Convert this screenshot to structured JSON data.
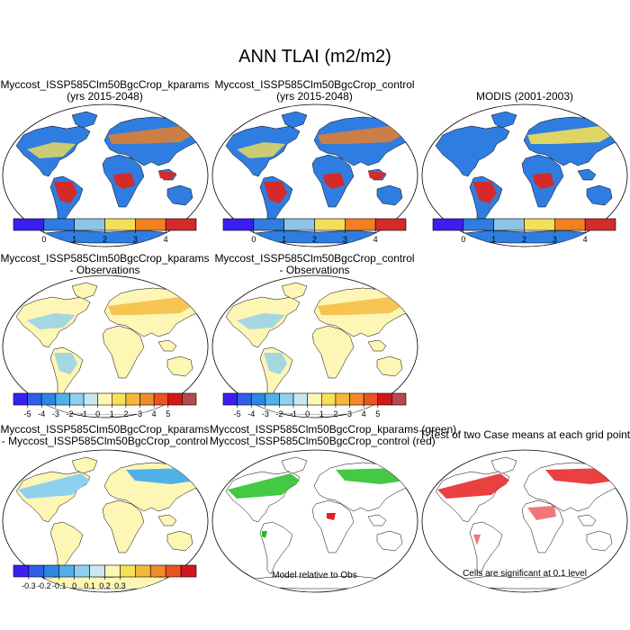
{
  "figure": {
    "title": "ANN TLAI (m2/m2)"
  },
  "panels": [
    {
      "line1": "Myccost_ISSP585Clm50BgcCrop_kparams",
      "line2": "(yrs 2015-2048)"
    },
    {
      "line1": "Myccost_ISSP585Clm50BgcCrop_control",
      "line2": "(yrs 2015-2048)"
    },
    {
      "line1": "MODIS (2001-2003)",
      "line2": ""
    },
    {
      "line1": "Myccost_ISSP585Clm50BgcCrop_kparams",
      "line2": "- Observations"
    },
    {
      "line1": "Myccost_ISSP585Clm50BgcCrop_control",
      "line2": "- Observations"
    },
    {
      "line1": "Myccost_ISSP585Clm50BgcCrop_kparams",
      "line2": "- Myccost_ISSP585Clm50BgcCrop_control"
    },
    {
      "line1": "Myccost_ISSP585Clm50BgcCrop_kparams (green)",
      "line2": "Myccost_ISSP585Clm50BgcCrop_control (red)"
    },
    {
      "line1": "T-Test of two Case means at each grid point",
      "line2": ""
    }
  ],
  "notes": {
    "model_relative": "Model relative to Obs",
    "significance": "Cells are significant at 0.1 level"
  },
  "chart_data": [
    {
      "type": "heatmap",
      "name": "colorbar-absolute",
      "tick_labels": [
        "0",
        "1",
        "2",
        "3",
        "4"
      ],
      "colors": [
        "#3a1ff0",
        "#2f7de0",
        "#8cc3e6",
        "#f3df58",
        "#f2801f",
        "#d42a2a"
      ]
    },
    {
      "type": "heatmap",
      "name": "colorbar-model-minus-obs",
      "tick_labels": [
        "-5",
        "-4",
        "-3",
        "-2",
        "-1",
        "0",
        "1",
        "2",
        "3",
        "4",
        "5"
      ],
      "colors": [
        "#3a1ff0",
        "#2f5fe8",
        "#2f86e2",
        "#4fb1e8",
        "#8ed0ee",
        "#c9e8f2",
        "#fdf6b4",
        "#f6e05a",
        "#f4b83a",
        "#f08a2a",
        "#e9541f",
        "#d4161c",
        "#b8484f"
      ]
    },
    {
      "type": "heatmap",
      "name": "colorbar-case-difference",
      "tick_labels": [
        "-0.3",
        "-0.2",
        "-0.1",
        "0",
        "0.1",
        "0.2",
        "0.3"
      ],
      "colors": [
        "#3a1ff0",
        "#2f5fe8",
        "#2f86e2",
        "#4fb1e8",
        "#8ed0ee",
        "#c9e8f2",
        "#fdf6b4",
        "#f6e05a",
        "#f4b83a",
        "#f08a2a",
        "#e9541f",
        "#d4161c"
      ]
    }
  ]
}
